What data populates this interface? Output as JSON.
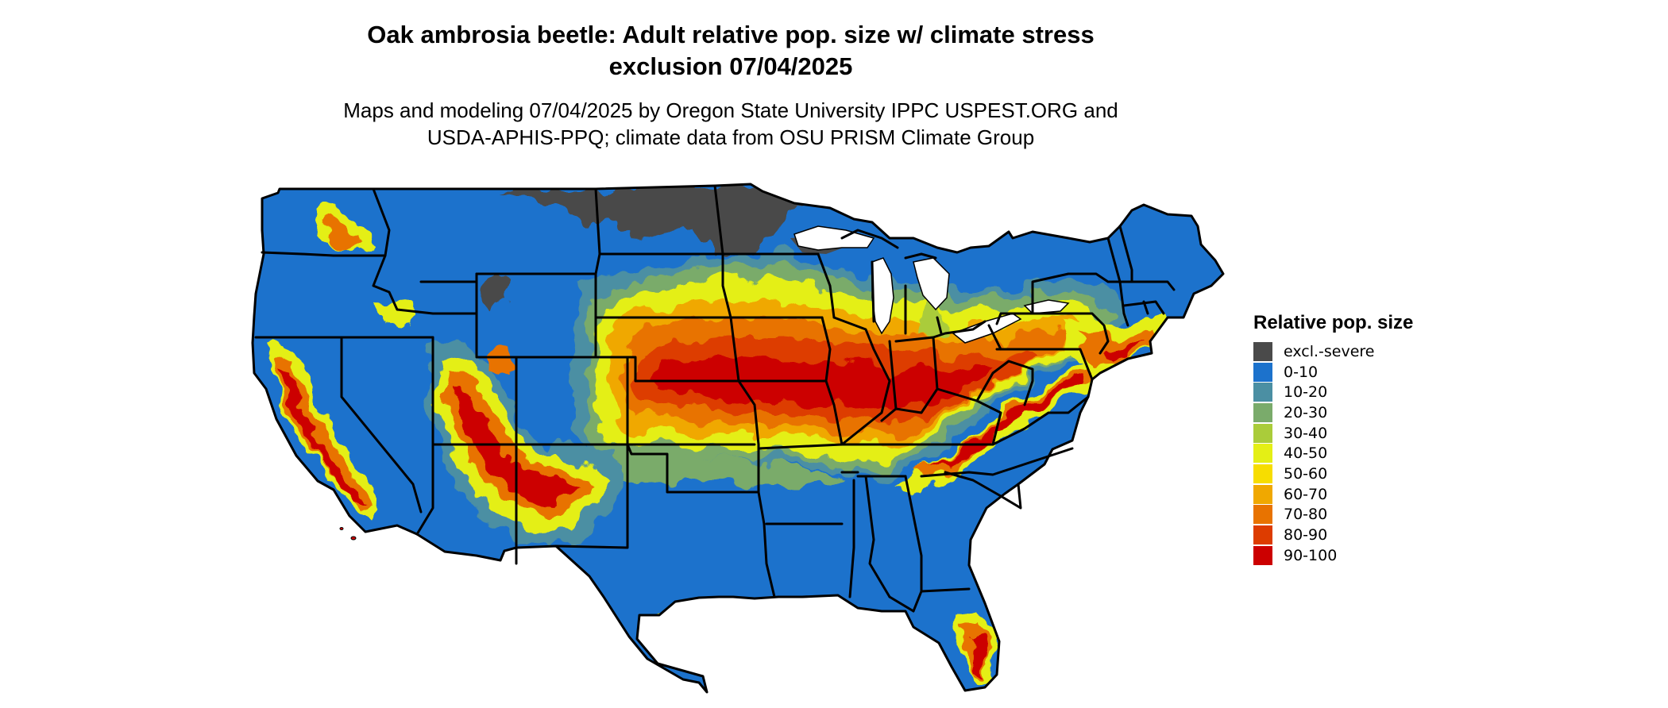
{
  "title_line1": "Oak ambrosia beetle: Adult relative pop. size w/ climate stress",
  "title_line2": "exclusion 07/04/2025",
  "subtitle_line1": "Maps and modeling 07/04/2025 by Oregon State University IPPC USPEST.ORG and",
  "subtitle_line2": "USDA-APHIS-PPQ; climate data from OSU PRISM Climate Group",
  "legend": {
    "title": "Relative pop. size",
    "items": [
      {
        "label": "excl.-severe",
        "color": "#4a4a4a"
      },
      {
        "label": "0-10",
        "color": "#1c72cc"
      },
      {
        "label": "10-20",
        "color": "#4b8fa3"
      },
      {
        "label": "20-30",
        "color": "#7aab6b"
      },
      {
        "label": "30-40",
        "color": "#aacc3a"
      },
      {
        "label": "40-50",
        "color": "#e4ef15"
      },
      {
        "label": "50-60",
        "color": "#f7dd00"
      },
      {
        "label": "60-70",
        "color": "#f0a800"
      },
      {
        "label": "70-80",
        "color": "#e87300"
      },
      {
        "label": "80-90",
        "color": "#dd3c00"
      },
      {
        "label": "90-100",
        "color": "#cc0000"
      }
    ]
  }
}
